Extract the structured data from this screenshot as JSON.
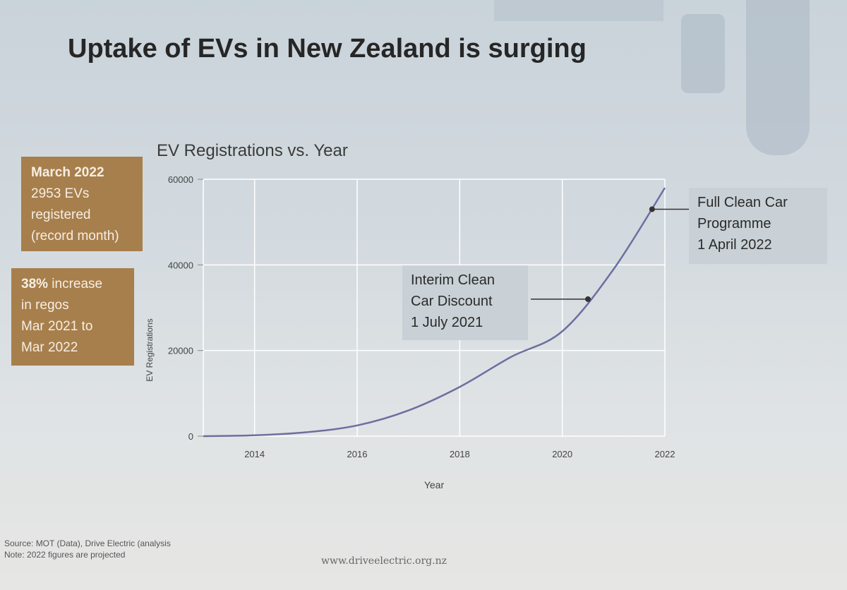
{
  "slide": {
    "title": "Uptake of EVs in New Zealand is surging",
    "url": "www.driveelectric.org.nz",
    "source_note": "Source: MOT (Data), Drive Electric (analysis",
    "projection_note": "Note: 2022 figures are projected"
  },
  "boxes": {
    "march": {
      "heading": "March 2022",
      "line1": "2953 EVs",
      "line2": "registered",
      "line3": "(record month)"
    },
    "increase": {
      "pct": "38%",
      "line1": " increase",
      "line2": "in regos",
      "line3": "Mar 2021 to",
      "line4": "Mar 2022"
    }
  },
  "callouts": {
    "full_programme": "Full Clean Car\nProgramme\n1 April 2022",
    "interim_discount": "Interim Clean\nCar Discount\n1 July 2021"
  },
  "colors": {
    "line": "#6e6ea0",
    "box": "#a77f4c",
    "grid": "#ffffff"
  },
  "chart_data": {
    "type": "line",
    "title": "EV Registrations vs. Year",
    "xlabel": "Year",
    "ylabel": "EV Registrations",
    "xlim": [
      2013,
      2022
    ],
    "ylim": [
      0,
      60000
    ],
    "x_ticks": [
      2014,
      2016,
      2018,
      2020,
      2022
    ],
    "y_ticks": [
      0,
      20000,
      40000,
      60000
    ],
    "grid": true,
    "series": [
      {
        "x": [
          2013,
          2014,
          2015,
          2016,
          2017,
          2018,
          2019,
          2020,
          2021,
          2022
        ],
        "values": [
          0,
          200,
          900,
          2500,
          6000,
          11500,
          18500,
          24500,
          39000,
          58000
        ]
      }
    ],
    "annotations": [
      {
        "text_ref": "interim_discount",
        "x": 2020.5,
        "y": 32000
      },
      {
        "text_ref": "full_programme",
        "x": 2021.75,
        "y": 53000
      }
    ]
  }
}
